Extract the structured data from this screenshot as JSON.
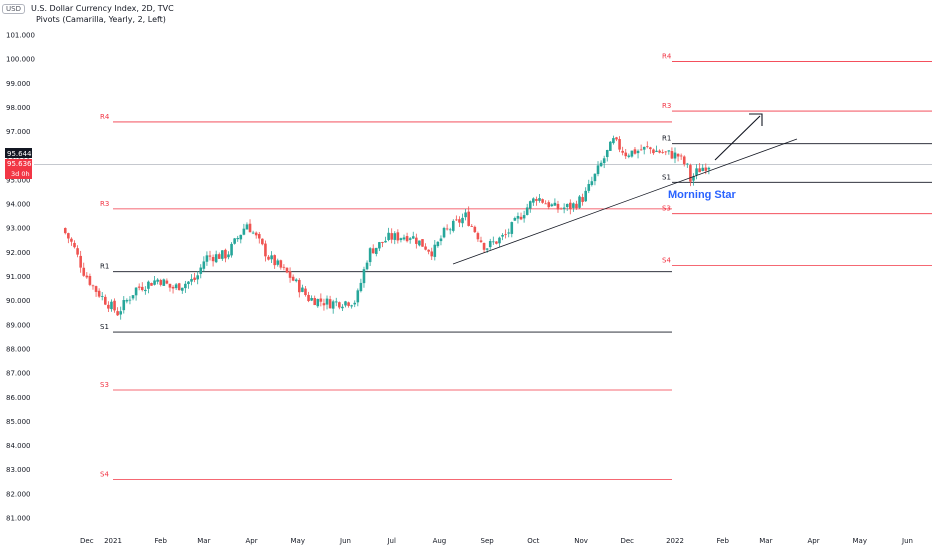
{
  "header": {
    "currency": "USD",
    "title": "U.S. Dollar Currency Index, 2D, TVC",
    "indicator": "Pivots (Camarilla, Yearly, 2, Left)"
  },
  "price_badges": {
    "last": "95.644",
    "close": "95.636",
    "countdown": "3d 0h"
  },
  "colors": {
    "up": "#26a69a",
    "down": "#ef5350",
    "pivot_resistance_far": "#f23645",
    "pivot_core": "#131722",
    "annotation": "#2962ff"
  },
  "chart_data": {
    "type": "candlestick",
    "timeframe": "2D",
    "y_ticks": [
      "81.000",
      "82.000",
      "83.000",
      "84.000",
      "85.000",
      "86.000",
      "87.000",
      "88.000",
      "89.000",
      "90.000",
      "91.000",
      "92.000",
      "93.000",
      "94.000",
      "95.000",
      "96.000",
      "97.000",
      "98.000",
      "99.000",
      "100.000",
      "101.000"
    ],
    "x_ticks": [
      "Dec",
      "2021",
      "Feb",
      "Mar",
      "Apr",
      "May",
      "Jun",
      "Jul",
      "Aug",
      "Sep",
      "Oct",
      "Nov",
      "Dec",
      "2022",
      "Feb",
      "Mar",
      "Apr",
      "May",
      "Jun"
    ],
    "ylim": [
      80.6,
      101.6
    ],
    "pivots_2021": [
      {
        "label": "R4",
        "value": 97.4
      },
      {
        "label": "R3",
        "value": 93.8
      },
      {
        "label": "R1",
        "value": 91.2
      },
      {
        "label": "S1",
        "value": 88.7
      },
      {
        "label": "S3",
        "value": 86.3
      },
      {
        "label": "S4",
        "value": 82.6
      }
    ],
    "pivots_2022": [
      {
        "label": "R4",
        "value": 99.9
      },
      {
        "label": "R3",
        "value": 97.85
      },
      {
        "label": "R1",
        "value": 96.5
      },
      {
        "label": "S1",
        "value": 94.9
      },
      {
        "label": "S3",
        "value": 93.6
      },
      {
        "label": "S4",
        "value": 91.45
      }
    ],
    "close_line": 95.644,
    "anchors": [
      [
        "2020-12-01",
        93.0
      ],
      [
        "2020-12-08",
        92.3
      ],
      [
        "2020-12-15",
        91.2
      ],
      [
        "2020-12-22",
        90.5
      ],
      [
        "2020-12-29",
        90.0
      ],
      [
        "2021-01-06",
        89.5
      ],
      [
        "2021-01-18",
        90.5
      ],
      [
        "2021-02-02",
        90.9
      ],
      [
        "2021-02-10",
        90.5
      ],
      [
        "2021-02-26",
        90.9
      ],
      [
        "2021-03-04",
        91.8
      ],
      [
        "2021-03-18",
        91.9
      ],
      [
        "2021-03-31",
        93.2
      ],
      [
        "2021-04-14",
        91.8
      ],
      [
        "2021-04-28",
        91.0
      ],
      [
        "2021-05-10",
        90.1
      ],
      [
        "2021-05-24",
        89.9
      ],
      [
        "2021-06-10",
        90.0
      ],
      [
        "2021-06-18",
        92.0
      ],
      [
        "2021-07-01",
        92.6
      ],
      [
        "2021-07-15",
        92.7
      ],
      [
        "2021-07-30",
        92.0
      ],
      [
        "2021-08-06",
        92.8
      ],
      [
        "2021-08-20",
        93.5
      ],
      [
        "2021-09-02",
        92.2
      ],
      [
        "2021-09-15",
        92.7
      ],
      [
        "2021-09-28",
        93.8
      ],
      [
        "2021-10-05",
        94.3
      ],
      [
        "2021-10-18",
        93.8
      ],
      [
        "2021-10-28",
        93.9
      ],
      [
        "2021-11-05",
        94.3
      ],
      [
        "2021-11-18",
        95.9
      ],
      [
        "2021-11-24",
        96.6
      ],
      [
        "2021-12-02",
        96.1
      ],
      [
        "2021-12-16",
        96.3
      ],
      [
        "2021-12-28",
        96.1
      ],
      [
        "2022-01-05",
        96.0
      ],
      [
        "2022-01-11",
        95.5
      ],
      [
        "2022-01-13",
        95.0
      ],
      [
        "2022-01-18",
        95.4
      ],
      [
        "2022-01-24",
        95.64
      ]
    ]
  },
  "annotations": {
    "pattern_label": "Morning Star"
  }
}
